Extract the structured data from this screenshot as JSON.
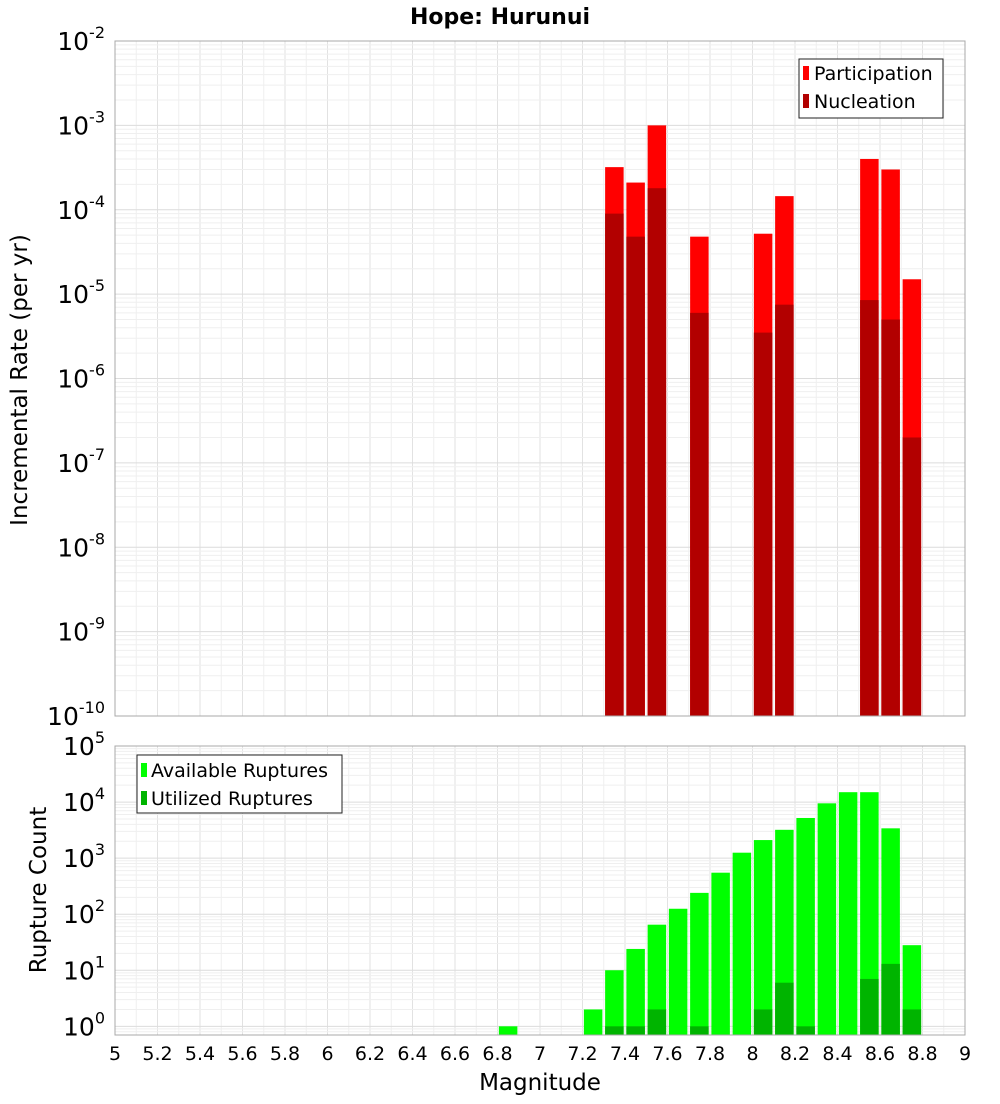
{
  "chart_data": [
    {
      "type": "bar",
      "title": "Hope: Hurunui",
      "xlabel": "",
      "ylabel": "Incremental Rate (per yr)",
      "yscale": "log",
      "ylim": [
        1e-10,
        0.01
      ],
      "xlim": [
        5,
        9
      ],
      "grid": true,
      "legend_position": "top-right",
      "x": [
        7.35,
        7.45,
        7.55,
        7.75,
        8.05,
        8.15,
        8.55,
        8.65,
        8.75
      ],
      "series": [
        {
          "name": "Participation",
          "color": "#ff0000",
          "values": [
            0.00032,
            0.00021,
            0.001,
            4.8e-05,
            5.2e-05,
            0.000145,
            0.0004,
            0.0003,
            1.5e-05
          ]
        },
        {
          "name": "Nucleation",
          "color": "#b20000",
          "values": [
            9e-05,
            4.8e-05,
            0.00018,
            6e-06,
            3.5e-06,
            7.5e-06,
            8.5e-06,
            5e-06,
            2e-07
          ]
        }
      ],
      "ytick_exponents": [
        -10,
        -9,
        -8,
        -7,
        -6,
        -5,
        -4,
        -3,
        -2
      ]
    },
    {
      "type": "bar",
      "title": "",
      "xlabel": "Magnitude",
      "ylabel": "Rupture Count",
      "yscale": "log",
      "ylim": [
        0.7,
        100000.0
      ],
      "xlim": [
        5,
        9
      ],
      "grid": true,
      "legend_position": "top-left",
      "x_tick_labels": [
        "5",
        "5.2",
        "5.4",
        "5.6",
        "5.8",
        "6",
        "6.2",
        "6.4",
        "6.6",
        "6.8",
        "7",
        "7.2",
        "7.4",
        "7.6",
        "7.8",
        "8",
        "8.2",
        "8.4",
        "8.6",
        "8.8",
        "9"
      ],
      "ytick_exponents": [
        0,
        1,
        2,
        3,
        4,
        5
      ],
      "x": [
        6.85,
        7.25,
        7.35,
        7.45,
        7.55,
        7.65,
        7.75,
        7.85,
        7.95,
        8.05,
        8.15,
        8.25,
        8.35,
        8.45,
        8.55,
        8.65,
        8.75
      ],
      "series": [
        {
          "name": "Available Ruptures",
          "color": "#00ff00",
          "values": [
            1,
            2,
            10,
            24,
            65,
            125,
            240,
            550,
            1250,
            2100,
            3200,
            5200,
            9500,
            15000,
            15000,
            3400,
            28
          ]
        },
        {
          "name": "Utilized Ruptures",
          "color": "#00b400",
          "values": [
            0,
            0,
            1,
            1,
            2,
            0,
            1,
            0,
            0,
            2,
            6,
            1,
            0,
            0,
            7,
            13,
            2
          ]
        }
      ]
    }
  ]
}
